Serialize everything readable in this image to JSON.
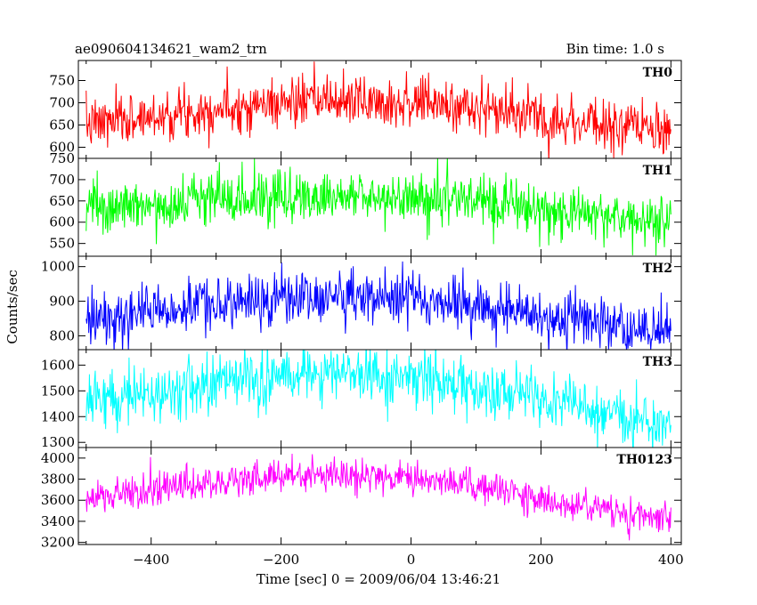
{
  "chart_data": {
    "type": "line",
    "title": "ae090604134621_wam2_trn",
    "subtitle": "Bin time: 1.0 s",
    "xlabel": "Time [sec] 0 = 2009/06/04 13:46:21",
    "ylabel": "Counts/sec",
    "xlim": [
      -512,
      416
    ],
    "x_ticks": [
      -400,
      -200,
      0,
      200,
      400
    ],
    "bin_time_s": 1.0,
    "noise_seed": 7,
    "panels": [
      {
        "name": "TH0",
        "color": "#ff0000",
        "ylim": [
          575,
          795
        ],
        "y_ticks": [
          600,
          650,
          700,
          750
        ],
        "trend": {
          "x": [
            -500,
            -300,
            -200,
            -100,
            0,
            100,
            200,
            300,
            400
          ],
          "y": [
            650,
            688,
            700,
            705,
            702,
            688,
            668,
            650,
            630
          ]
        },
        "noise_sd": 28
      },
      {
        "name": "TH1",
        "color": "#00ff00",
        "ylim": [
          520,
          750
        ],
        "y_ticks": [
          550,
          600,
          650,
          700,
          750
        ],
        "trend": {
          "x": [
            -500,
            -300,
            -200,
            -100,
            0,
            100,
            200,
            300,
            400
          ],
          "y": [
            630,
            655,
            660,
            662,
            660,
            648,
            632,
            618,
            605
          ]
        },
        "noise_sd": 30
      },
      {
        "name": "TH2",
        "color": "#0000ff",
        "ylim": [
          760,
          1030
        ],
        "y_ticks": [
          800,
          900,
          1000
        ],
        "trend": {
          "x": [
            -500,
            -300,
            -200,
            -100,
            0,
            100,
            200,
            300,
            400
          ],
          "y": [
            855,
            890,
            910,
            912,
            905,
            885,
            862,
            838,
            815
          ]
        },
        "noise_sd": 38
      },
      {
        "name": "TH3",
        "color": "#00ffff",
        "ylim": [
          1280,
          1660
        ],
        "y_ticks": [
          1300,
          1400,
          1500,
          1600
        ],
        "trend": {
          "x": [
            -500,
            -300,
            -200,
            -100,
            0,
            100,
            200,
            300,
            400
          ],
          "y": [
            1460,
            1530,
            1570,
            1565,
            1550,
            1510,
            1460,
            1420,
            1380
          ]
        },
        "noise_sd": 55
      },
      {
        "name": "TH0123",
        "color": "#ff00ff",
        "ylim": [
          3180,
          4100
        ],
        "y_ticks": [
          3200,
          3400,
          3600,
          3800,
          4000
        ],
        "trend": {
          "x": [
            -500,
            -300,
            -200,
            -100,
            0,
            100,
            200,
            300,
            400
          ],
          "y": [
            3620,
            3770,
            3840,
            3835,
            3810,
            3740,
            3620,
            3500,
            3400
          ]
        },
        "noise_sd": 80
      }
    ]
  }
}
